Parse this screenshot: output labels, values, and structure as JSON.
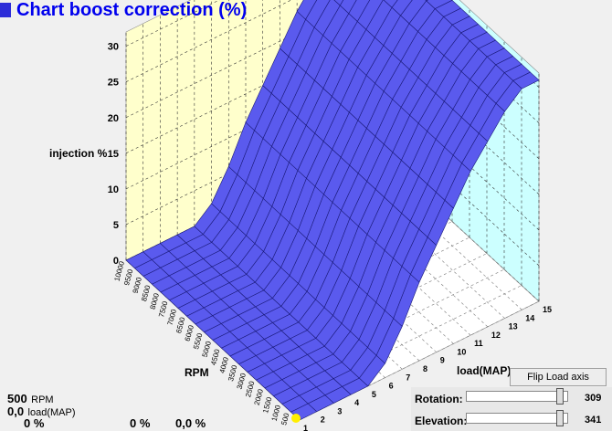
{
  "title": "Chart boost correction (%)",
  "chart": {
    "zlabel": "injection %",
    "xlabel": "RPM",
    "ylabel": "load(MAP)",
    "z_ticks": [
      "0",
      "5",
      "10",
      "15",
      "20",
      "25",
      "30"
    ],
    "load_ticks": [
      "1",
      "2",
      "3",
      "4",
      "5",
      "6",
      "7",
      "8",
      "9",
      "10",
      "11",
      "12",
      "13",
      "14",
      "15"
    ],
    "rpm_ticks": [
      "500",
      "1000",
      "1500",
      "2000",
      "2500",
      "3000",
      "3500",
      "4000",
      "4500",
      "5000",
      "5500",
      "6000",
      "6500",
      "7000",
      "7500",
      "8000",
      "8500",
      "9000",
      "9500",
      "10000"
    ],
    "colors": {
      "surface": "#5a5aee",
      "left_wall": "#ffffcc",
      "right_wall": "#ccffff",
      "floor": "#ffffff",
      "grid": "#000000"
    }
  },
  "chart_data": {
    "type": "surface",
    "title": "Chart boost correction (%)",
    "zlabel": "injection %",
    "xlabel": "RPM",
    "ylabel": "load(MAP)",
    "zlim": [
      0,
      32
    ],
    "load": [
      1,
      2,
      3,
      4,
      5,
      6,
      7,
      8,
      9,
      10,
      11,
      12,
      13,
      14,
      15
    ],
    "correction_by_load": [
      0,
      0,
      0,
      0,
      0,
      2,
      6,
      11,
      15,
      19,
      23,
      26,
      29,
      31,
      31
    ],
    "note_rpm_independent": true
  },
  "info": {
    "rpm_value": "500",
    "rpm_unit": "RPM",
    "load_value": "0,0",
    "load_unit": "load(MAP)",
    "pct1": "0 %",
    "pct2": "0 %",
    "pct3": "0,0 %"
  },
  "controls": {
    "flip_button": "Flip Load axis",
    "rotation_label": "Rotation:",
    "rotation_value": "309",
    "elevation_label": "Elevation:",
    "elevation_value": "341"
  }
}
